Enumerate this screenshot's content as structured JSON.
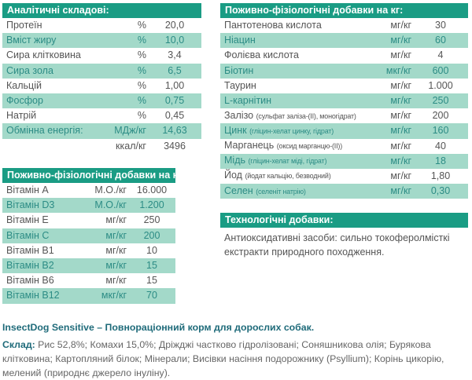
{
  "analytics": {
    "title": "Аналітичні складові:",
    "rows": [
      [
        "Протеїн",
        "%",
        "20,0"
      ],
      [
        "Вміст жиру",
        "%",
        "10,0"
      ],
      [
        "Сира клітковина",
        "%",
        "3,4"
      ],
      [
        "Сира зола",
        "%",
        "6,5"
      ],
      [
        "Кальцій",
        "%",
        "1,00"
      ],
      [
        "Фосфор",
        "%",
        "0,75"
      ],
      [
        "Натрій",
        "%",
        "0,45"
      ],
      [
        "Обмінна енергія:",
        "МДж/кг",
        "14,63"
      ],
      [
        "",
        "ккал/кг",
        "3496"
      ]
    ]
  },
  "vitamins": {
    "title": "Поживно-фізіологічні добавки на кг:",
    "rows": [
      [
        "Вітамін A",
        "М.О./кг",
        "16.000"
      ],
      [
        "Вітамін D3",
        "М.О./кг",
        "1.200"
      ],
      [
        "Вітамін E",
        "мг/кг",
        "250"
      ],
      [
        "Вітамін C",
        "мг/кг",
        "200"
      ],
      [
        "Вітамін B1",
        "мг/кг",
        "10"
      ],
      [
        "Вітамін B2",
        "мг/кг",
        "15"
      ],
      [
        "Вітамін B6",
        "мг/кг",
        "15"
      ],
      [
        "Вітамін B12",
        "мкг/кг",
        "70"
      ]
    ]
  },
  "supplements": {
    "title": "Поживно-фізіологічні добавки на кг:",
    "rows": [
      [
        "Пантотенова кислота",
        "",
        "мг/кг",
        "30"
      ],
      [
        "Ніацин",
        "",
        "мг/кг",
        "60"
      ],
      [
        "Фолієва кислота",
        "",
        "мг/кг",
        "4"
      ],
      [
        "Біотин",
        "",
        "мкг/кг",
        "600"
      ],
      [
        "Таурин",
        "",
        "мг/кг",
        "1.000"
      ],
      [
        "L-карнітин",
        "",
        "мг/кг",
        "250"
      ],
      [
        "Залізо",
        "(сульфат заліза-(II), моногідрат)",
        "мг/кг",
        "200"
      ],
      [
        "Цинк",
        "(гліцин-хелат цинку, гідрат)",
        "мг/кг",
        "160"
      ],
      [
        "Марганець",
        "(оксид марганцю-(II))",
        "мг/кг",
        "40"
      ],
      [
        "Мідь",
        "(гліцин-хелат міді, гідрат)",
        "мг/кг",
        "18"
      ],
      [
        "Йод",
        "(йодат кальцію, безводний)",
        "мг/кг",
        "1,80"
      ],
      [
        "Селен",
        "(селеніт натрію)",
        "мг/кг",
        "0,30"
      ]
    ]
  },
  "tech": {
    "title": "Технологічні добавки:",
    "text": "Антиоксидативні засоби: сильно токоферолмісткі екстракти природного походження."
  },
  "product": {
    "title": "InsectDog Sensitive – Повнораціонний корм для дорослих собак.",
    "composition_label": "Склад:",
    "composition": " Рис 52,8%; Комахи 15,0%; Дріжджі частково гідролізовані; Соняшникова олія; Бурякова клітковина; Картопляний білок; Мінерали; Висівки насіння подорожнику (Psyllium); Корінь цикорію, мелений (природнє джерело інуліну)."
  }
}
